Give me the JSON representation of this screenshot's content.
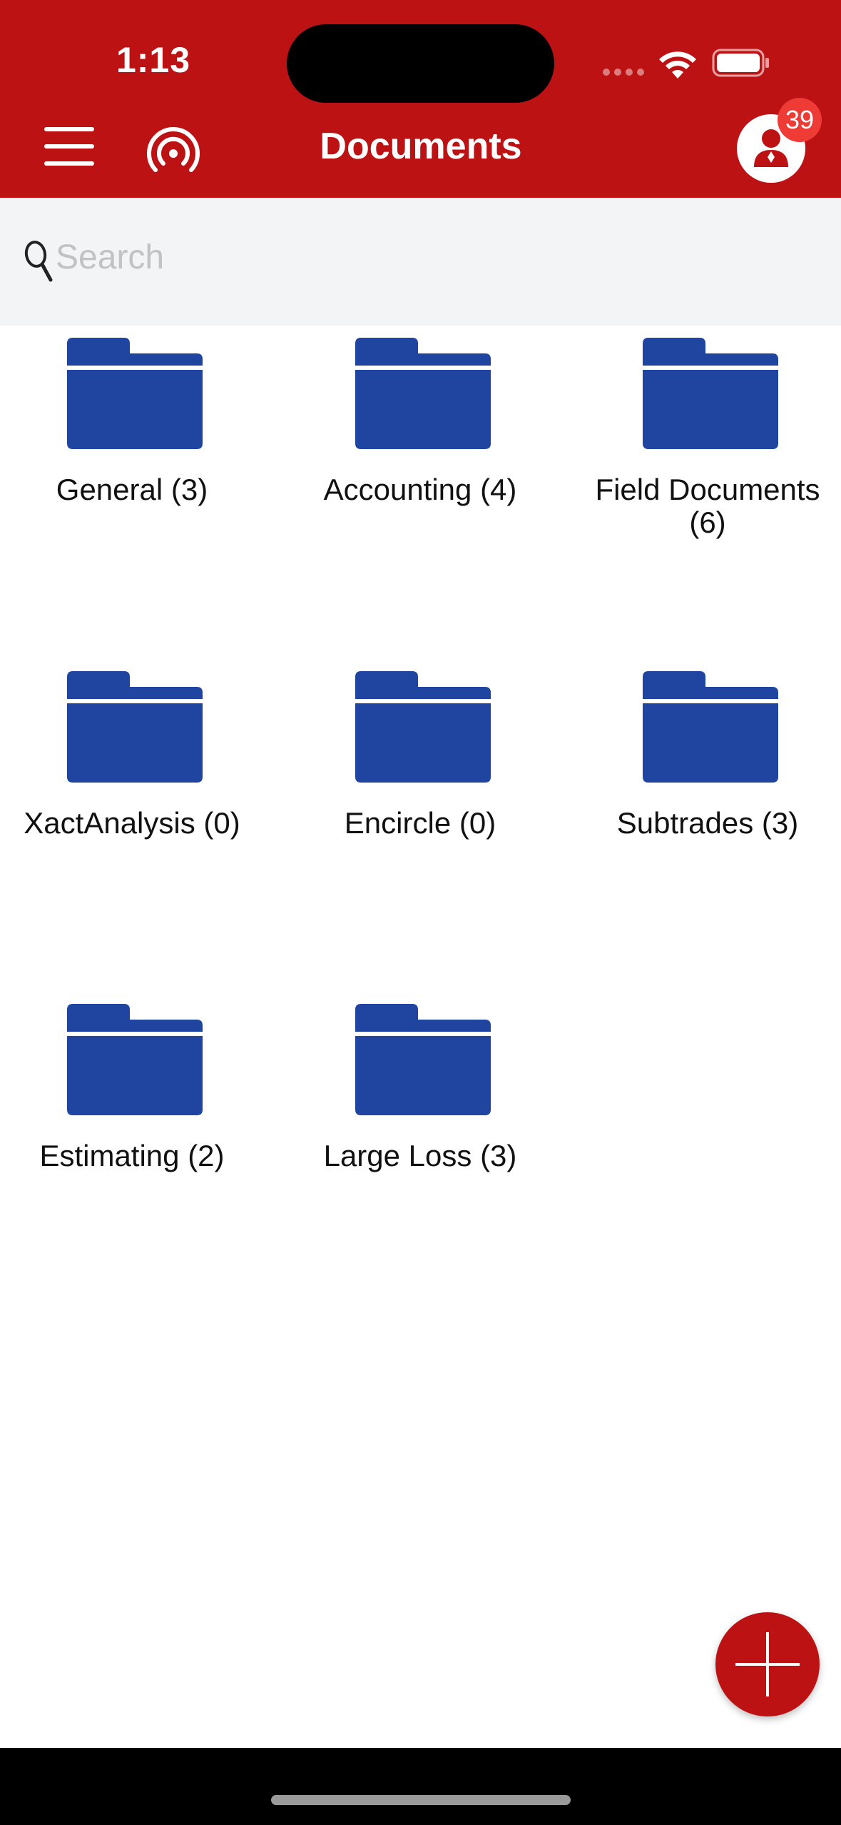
{
  "status_bar": {
    "time": "1:13"
  },
  "header": {
    "title": "Documents",
    "menu_icon": "hamburger-menu-icon",
    "broadcast_icon": "broadcast-icon",
    "profile_icon": "person-icon",
    "notification_count": "39",
    "background_color": "#bd1214"
  },
  "search": {
    "placeholder": "Search",
    "value": ""
  },
  "folders": [
    {
      "label": "General (3)"
    },
    {
      "label": "Accounting (4)"
    },
    {
      "label": "Field Documents (6)"
    },
    {
      "label": "XactAnalysis (0)"
    },
    {
      "label": "Encircle (0)"
    },
    {
      "label": "Subtrades (3)"
    },
    {
      "label": "Estimating (2)"
    },
    {
      "label": "Large Loss (3)"
    }
  ],
  "folder_icon": "folder-icon",
  "folder_color": "#2045a0",
  "fab": {
    "icon": "plus-icon"
  }
}
